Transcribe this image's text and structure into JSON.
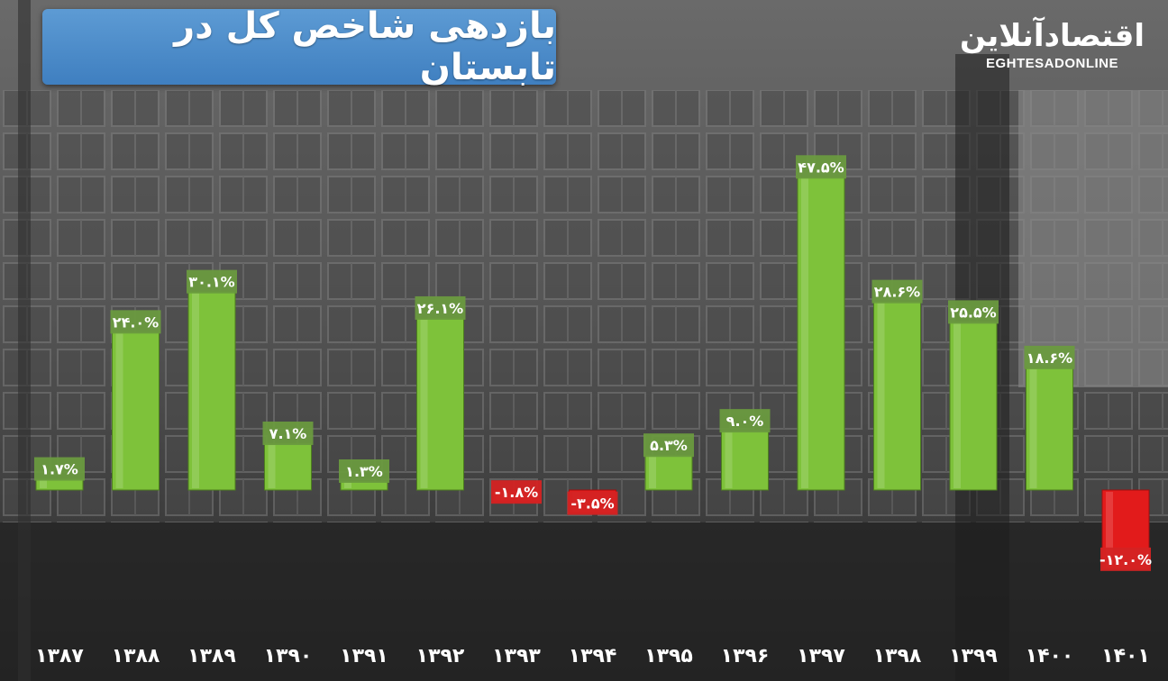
{
  "header": {
    "title": "بازدهی شاخص کل در تابستان"
  },
  "logo": {
    "name_fa": "اقتصادآنلاین",
    "name_en": "EGHTESADONLINE"
  },
  "colors": {
    "positive_bar": "#7ec23a",
    "negative_bar": "#e21b1b",
    "title_bg": "#4a8ac8"
  },
  "chart_data": {
    "type": "bar",
    "categories": [
      "۱۳۸۷",
      "۱۳۸۸",
      "۱۳۸۹",
      "۱۳۹۰",
      "۱۳۹۱",
      "۱۳۹۲",
      "۱۳۹۳",
      "۱۳۹۴",
      "۱۳۹۵",
      "۱۳۹۶",
      "۱۳۹۷",
      "۱۳۹۸",
      "۱۳۹۹",
      "۱۴۰۰",
      "۱۴۰۱"
    ],
    "values": [
      1.7,
      24.0,
      30.1,
      7.1,
      1.3,
      26.1,
      -1.8,
      -3.5,
      5.3,
      9.0,
      47.5,
      28.6,
      25.5,
      18.6,
      -12.0
    ],
    "data_labels": [
      "۱.۷%",
      "۲۴.۰%",
      "۳۰.۱%",
      "۷.۱%",
      "۱.۳%",
      "۲۶.۱%",
      "-۱.۸%",
      "-۳.۵%",
      "۵.۳%",
      "۹.۰%",
      "۴۷.۵%",
      "۲۸.۶%",
      "۲۵.۵%",
      "۱۸.۶%",
      "-۱۲.۰%"
    ],
    "title": "بازدهی شاخص کل در تابستان",
    "xlabel": "",
    "ylabel": "",
    "ylim": [
      -12,
      48
    ],
    "grid": false
  }
}
